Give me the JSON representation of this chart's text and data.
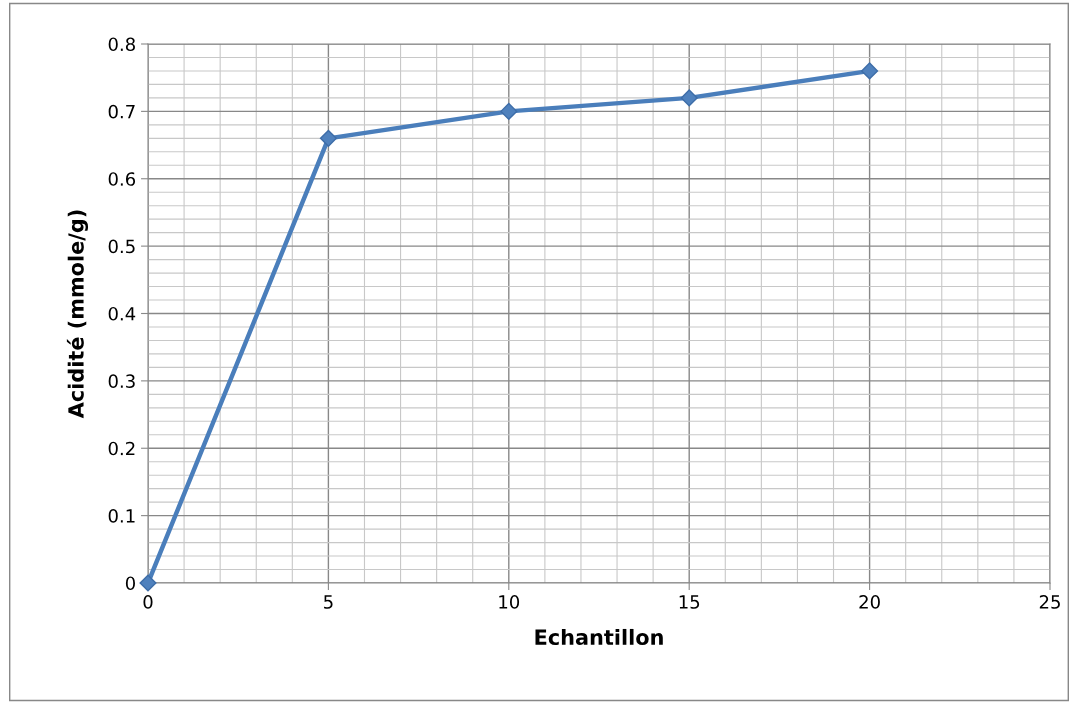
{
  "chart_data": {
    "type": "line",
    "xlabel": "Echantillon",
    "ylabel": "Acidité (mmole/g)",
    "x": [
      0,
      5,
      10,
      15,
      20
    ],
    "series": [
      {
        "color": "#4a7ebb",
        "values": [
          0,
          0.66,
          0.7,
          0.72,
          0.76
        ]
      }
    ],
    "xlim": [
      0,
      25
    ],
    "xticks": [
      0,
      5,
      10,
      15,
      20,
      25
    ],
    "ylim": [
      0,
      0.8
    ],
    "yticks": [
      0,
      {
        "value": 0.1,
        "label": "0.1"
      },
      {
        "value": 0.2,
        "label": "0.2"
      },
      {
        "value": 0.3,
        "label": "0.3"
      },
      {
        "value": 0.4,
        "label": "0.4"
      },
      {
        "value": 0.5,
        "label": "0.5"
      },
      {
        "value": 0.6,
        "label": "0.6"
      },
      {
        "value": 0.7,
        "label": "0.7"
      },
      {
        "value": 0.8,
        "label": "0.8"
      }
    ],
    "grid": true,
    "marker": "diamond",
    "line_style": "solid"
  }
}
